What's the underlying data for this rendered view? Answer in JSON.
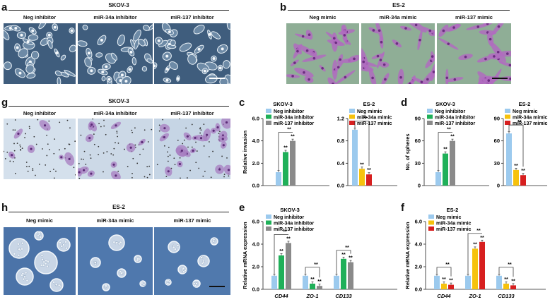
{
  "panel_labels": {
    "a": "a",
    "b": "b",
    "c": "c",
    "d": "d",
    "e": "e",
    "f": "f",
    "g": "g",
    "h": "h"
  },
  "panel_a": {
    "title": "SKOV-3",
    "images": [
      "Neg inhibitor",
      "miR-34a inhibitor",
      "miR-137 inhibitor"
    ]
  },
  "panel_b": {
    "title": "ES-2",
    "images": [
      "Neg mimic",
      "miR-34a mimic",
      "miR-137 mimic"
    ]
  },
  "panel_g": {
    "title": "SKOV-3",
    "images": [
      "Neg inhibitor",
      "miR-34a inhibitor",
      "miR-137 inhibitor"
    ]
  },
  "panel_h": {
    "title": "ES-2",
    "images": [
      "Neg mimic",
      "miR-34a mimic",
      "miR-137 mimic"
    ]
  },
  "colors": {
    "neg": "#9ccaee",
    "inhibitor34a": "#1fb059",
    "inhibitor137": "#8a8a8a",
    "mimic34a": "#f6c20e",
    "mimic137": "#d71f1f",
    "phase_bg": "#3f5d7d",
    "hematoxylin_bg": "#8fae96",
    "crystal_bg": "#c8d8e6",
    "sphere_bg": "#4b73a8"
  },
  "chart_data": [
    {
      "id": "c-skov3",
      "type": "bar",
      "title": "SKOV-3",
      "ylabel": "Relative invasion",
      "ylim": [
        0,
        6.0
      ],
      "yticks": [
        "0.0",
        "2.0",
        "4.0",
        "6.0"
      ],
      "ytick_values": [
        0,
        2,
        4,
        6
      ],
      "series": [
        {
          "name": "Neg inhibitor",
          "values": [
            1.2
          ]
        },
        {
          "name": "miR-34a inhibitor",
          "values": [
            3.0
          ]
        },
        {
          "name": "miR-137 inhibitor",
          "values": [
            4.0
          ]
        }
      ],
      "significance": "**"
    },
    {
      "id": "c-es2",
      "type": "bar",
      "title": "ES-2",
      "ylabel": "",
      "ylim": [
        0,
        1.2
      ],
      "yticks": [
        "0.0",
        "0.4",
        "0.8",
        "1.2"
      ],
      "ytick_values": [
        0,
        0.4,
        0.8,
        1.2
      ],
      "series": [
        {
          "name": "Neg mimic",
          "values": [
            1.0
          ]
        },
        {
          "name": "miR-34a mimic",
          "values": [
            0.3
          ]
        },
        {
          "name": "miR-137 mimic",
          "values": [
            0.2
          ]
        }
      ],
      "significance": "**"
    },
    {
      "id": "d-skov3",
      "type": "bar",
      "title": "SKOV-3",
      "ylabel": "No. of spheres",
      "ylim": [
        0,
        90
      ],
      "yticks": [
        "0",
        "30",
        "60",
        "90"
      ],
      "ytick_values": [
        0,
        30,
        60,
        90
      ],
      "series": [
        {
          "name": "Neg inhibitor",
          "values": [
            18
          ]
        },
        {
          "name": "miR-34a inhibitor",
          "values": [
            43
          ]
        },
        {
          "name": "miR-137 inhibitor",
          "values": [
            60
          ]
        }
      ],
      "significance": "**"
    },
    {
      "id": "d-es2",
      "type": "bar",
      "title": "ES-2",
      "ylabel": "",
      "ylim": [
        0,
        90
      ],
      "yticks": [
        "0",
        "30",
        "60",
        "90"
      ],
      "ytick_values": [
        0,
        30,
        60,
        90
      ],
      "series": [
        {
          "name": "Neg mimic",
          "values": [
            70
          ]
        },
        {
          "name": "miR-34a mimic",
          "values": [
            21
          ]
        },
        {
          "name": "miR-137 mimic",
          "values": [
            14
          ]
        }
      ],
      "significance": "**"
    },
    {
      "id": "e",
      "type": "bar",
      "title": "SKOV-3",
      "ylabel": "Relative mRNA expression",
      "ylim": [
        0,
        6.0
      ],
      "yticks": [
        "0.0",
        "2.0",
        "4.0",
        "6.0"
      ],
      "ytick_values": [
        0,
        2,
        4,
        6
      ],
      "categories": [
        "CD44",
        "ZO-1",
        "CD133"
      ],
      "series": [
        {
          "name": "Neg inhibitor",
          "values": [
            1.2,
            1.2,
            1.2
          ]
        },
        {
          "name": "miR-34a inhibitor",
          "values": [
            3.0,
            0.5,
            2.7
          ]
        },
        {
          "name": "miR-137 inhibitor",
          "values": [
            4.1,
            0.3,
            2.4
          ]
        }
      ],
      "significance": "**"
    },
    {
      "id": "f",
      "type": "bar",
      "title": "ES-2",
      "ylabel": "Relative mRNA expression",
      "ylim": [
        0,
        6.0
      ],
      "yticks": [
        "0.0",
        "2.0",
        "4.0",
        "6.0"
      ],
      "ytick_values": [
        0,
        2,
        4,
        6
      ],
      "categories": [
        "CD44",
        "ZO-1",
        "CD133"
      ],
      "series": [
        {
          "name": "Neg mimic",
          "values": [
            1.2,
            1.2,
            1.2
          ]
        },
        {
          "name": "miR-34a mimic",
          "values": [
            0.5,
            3.6,
            0.5
          ]
        },
        {
          "name": "miR-137 mimic",
          "values": [
            0.4,
            4.2,
            0.35
          ]
        }
      ],
      "significance": "**"
    }
  ]
}
